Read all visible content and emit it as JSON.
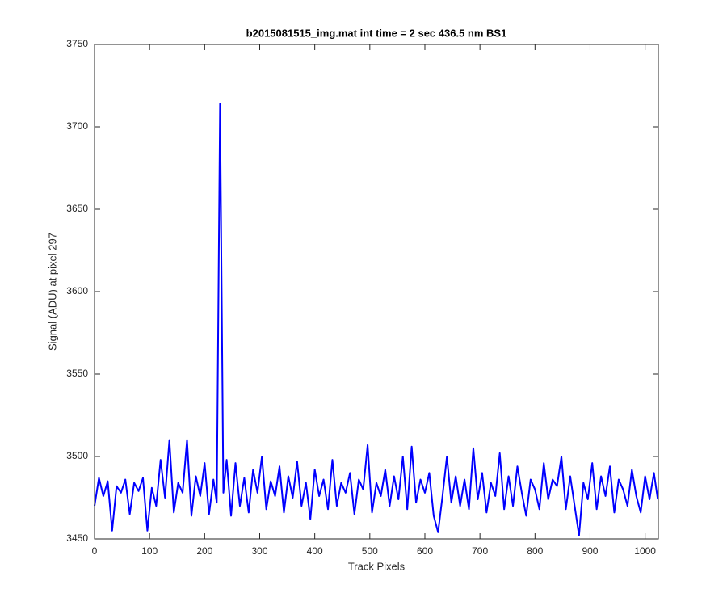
{
  "chart_data": {
    "type": "line",
    "title": "b2015081515_img.mat int time = 2 sec  436.5 nm BS1",
    "xlabel": "Track Pixels",
    "ylabel": "Signal (ADU) at pixel 297",
    "x": [
      0,
      8,
      16,
      24,
      32,
      40,
      48,
      56,
      64,
      72,
      80,
      88,
      96,
      104,
      112,
      120,
      128,
      136,
      144,
      152,
      160,
      168,
      176,
      184,
      192,
      200,
      208,
      216,
      222,
      228,
      234,
      240,
      248,
      256,
      264,
      272,
      280,
      288,
      296,
      304,
      312,
      320,
      328,
      336,
      344,
      352,
      360,
      368,
      376,
      384,
      392,
      400,
      408,
      416,
      424,
      432,
      440,
      448,
      456,
      464,
      472,
      480,
      488,
      496,
      504,
      512,
      520,
      528,
      536,
      544,
      552,
      560,
      568,
      576,
      584,
      592,
      600,
      608,
      616,
      624,
      632,
      640,
      648,
      656,
      664,
      672,
      680,
      688,
      696,
      704,
      712,
      720,
      728,
      736,
      744,
      752,
      760,
      768,
      776,
      784,
      792,
      800,
      808,
      816,
      824,
      832,
      840,
      848,
      856,
      864,
      872,
      880,
      888,
      896,
      904,
      912,
      920,
      928,
      936,
      944,
      952,
      960,
      968,
      976,
      984,
      992,
      1000,
      1008,
      1016,
      1023
    ],
    "series": [
      {
        "color": "#0000ff",
        "values": [
          3470,
          3487,
          3476,
          3485,
          3455,
          3482,
          3478,
          3486,
          3465,
          3484,
          3479,
          3487,
          3455,
          3481,
          3470,
          3498,
          3475,
          3510,
          3466,
          3484,
          3478,
          3510,
          3464,
          3488,
          3476,
          3496,
          3465,
          3486,
          3472,
          3714,
          3478,
          3498,
          3464,
          3496,
          3470,
          3487,
          3466,
          3492,
          3478,
          3500,
          3468,
          3485,
          3476,
          3494,
          3466,
          3488,
          3475,
          3497,
          3470,
          3484,
          3462,
          3492,
          3476,
          3486,
          3468,
          3498,
          3470,
          3484,
          3478,
          3490,
          3465,
          3486,
          3480,
          3507,
          3466,
          3484,
          3476,
          3492,
          3470,
          3488,
          3474,
          3500,
          3468,
          3506,
          3472,
          3486,
          3478,
          3490,
          3464,
          3454,
          3476,
          3500,
          3472,
          3488,
          3470,
          3486,
          3468,
          3505,
          3474,
          3490,
          3466,
          3484,
          3476,
          3502,
          3468,
          3488,
          3470,
          3494,
          3478,
          3464,
          3486,
          3480,
          3468,
          3496,
          3474,
          3486,
          3482,
          3500,
          3468,
          3488,
          3470,
          3452,
          3484,
          3474,
          3496,
          3468,
          3488,
          3476,
          3494,
          3466,
          3486,
          3480,
          3470,
          3492,
          3476,
          3466,
          3488,
          3474,
          3490,
          3474
        ]
      }
    ],
    "xlim": [
      0,
      1024
    ],
    "xticks": [
      0,
      100,
      200,
      300,
      400,
      500,
      600,
      700,
      800,
      900,
      1000
    ],
    "ylim": [
      3450,
      3750
    ],
    "yticks": [
      3450,
      3500,
      3550,
      3600,
      3650,
      3700,
      3750
    ],
    "grid": false
  }
}
